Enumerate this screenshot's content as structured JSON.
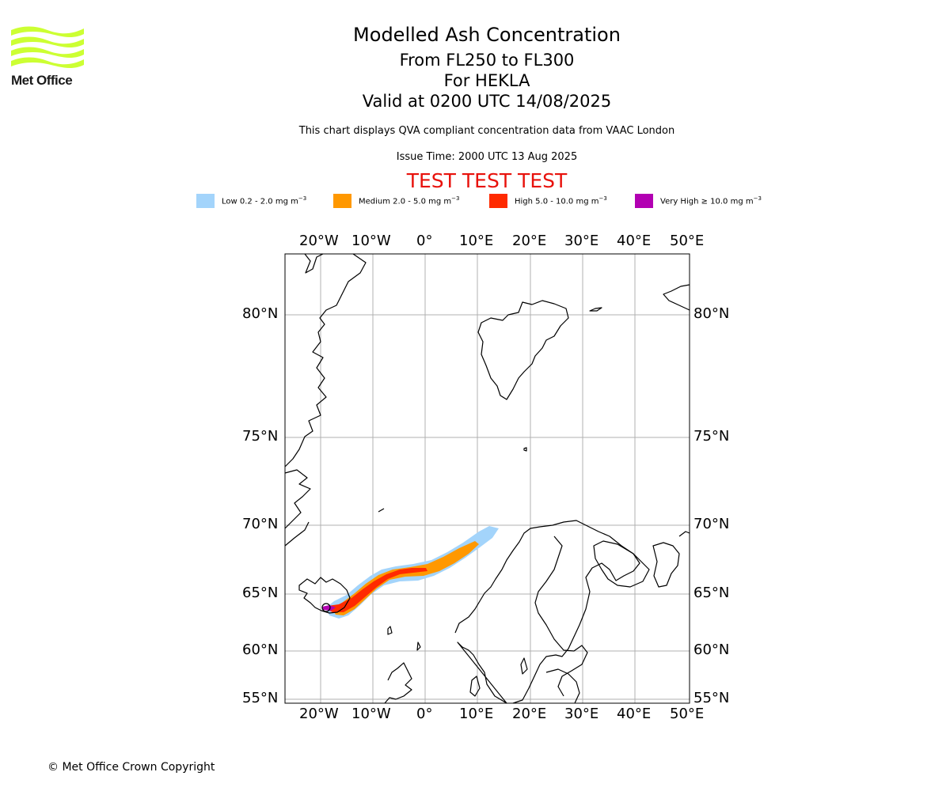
{
  "logo": {
    "text": "Met Office",
    "color": "#ccff33"
  },
  "title": {
    "line1": "Modelled Ash Concentration",
    "line2": "From FL250 to FL300",
    "line3": "For HEKLA",
    "line4": "Valid at 0200 UTC 14/08/2025"
  },
  "subtitle": "This chart displays QVA compliant concentration data from VAAC London",
  "issue_time": "Issue Time: 2000 UTC 13 Aug 2025",
  "test_banner": "TEST TEST TEST",
  "legend": [
    {
      "label": "Low 0.2 - 2.0 mg m",
      "color": "#a3d4fb"
    },
    {
      "label": "Medium 2.0 - 5.0 mg m",
      "color": "#ff9800"
    },
    {
      "label": "High 5.0 - 10.0 mg m",
      "color": "#ff2a00"
    },
    {
      "label": "Very High ≥ 10.0 mg m",
      "color": "#b200b2"
    }
  ],
  "legend_unit_exponent": "−3",
  "map": {
    "longitude_labels": [
      "20°W",
      "10°W",
      "0°",
      "10°E",
      "20°E",
      "30°E",
      "40°E",
      "50°E"
    ],
    "latitude_labels": [
      "80°N",
      "75°N",
      "70°N",
      "65°N",
      "60°N",
      "55°N"
    ],
    "grid": true,
    "source_volcano": "HEKLA"
  },
  "copyright": "© Met Office Crown Copyright"
}
